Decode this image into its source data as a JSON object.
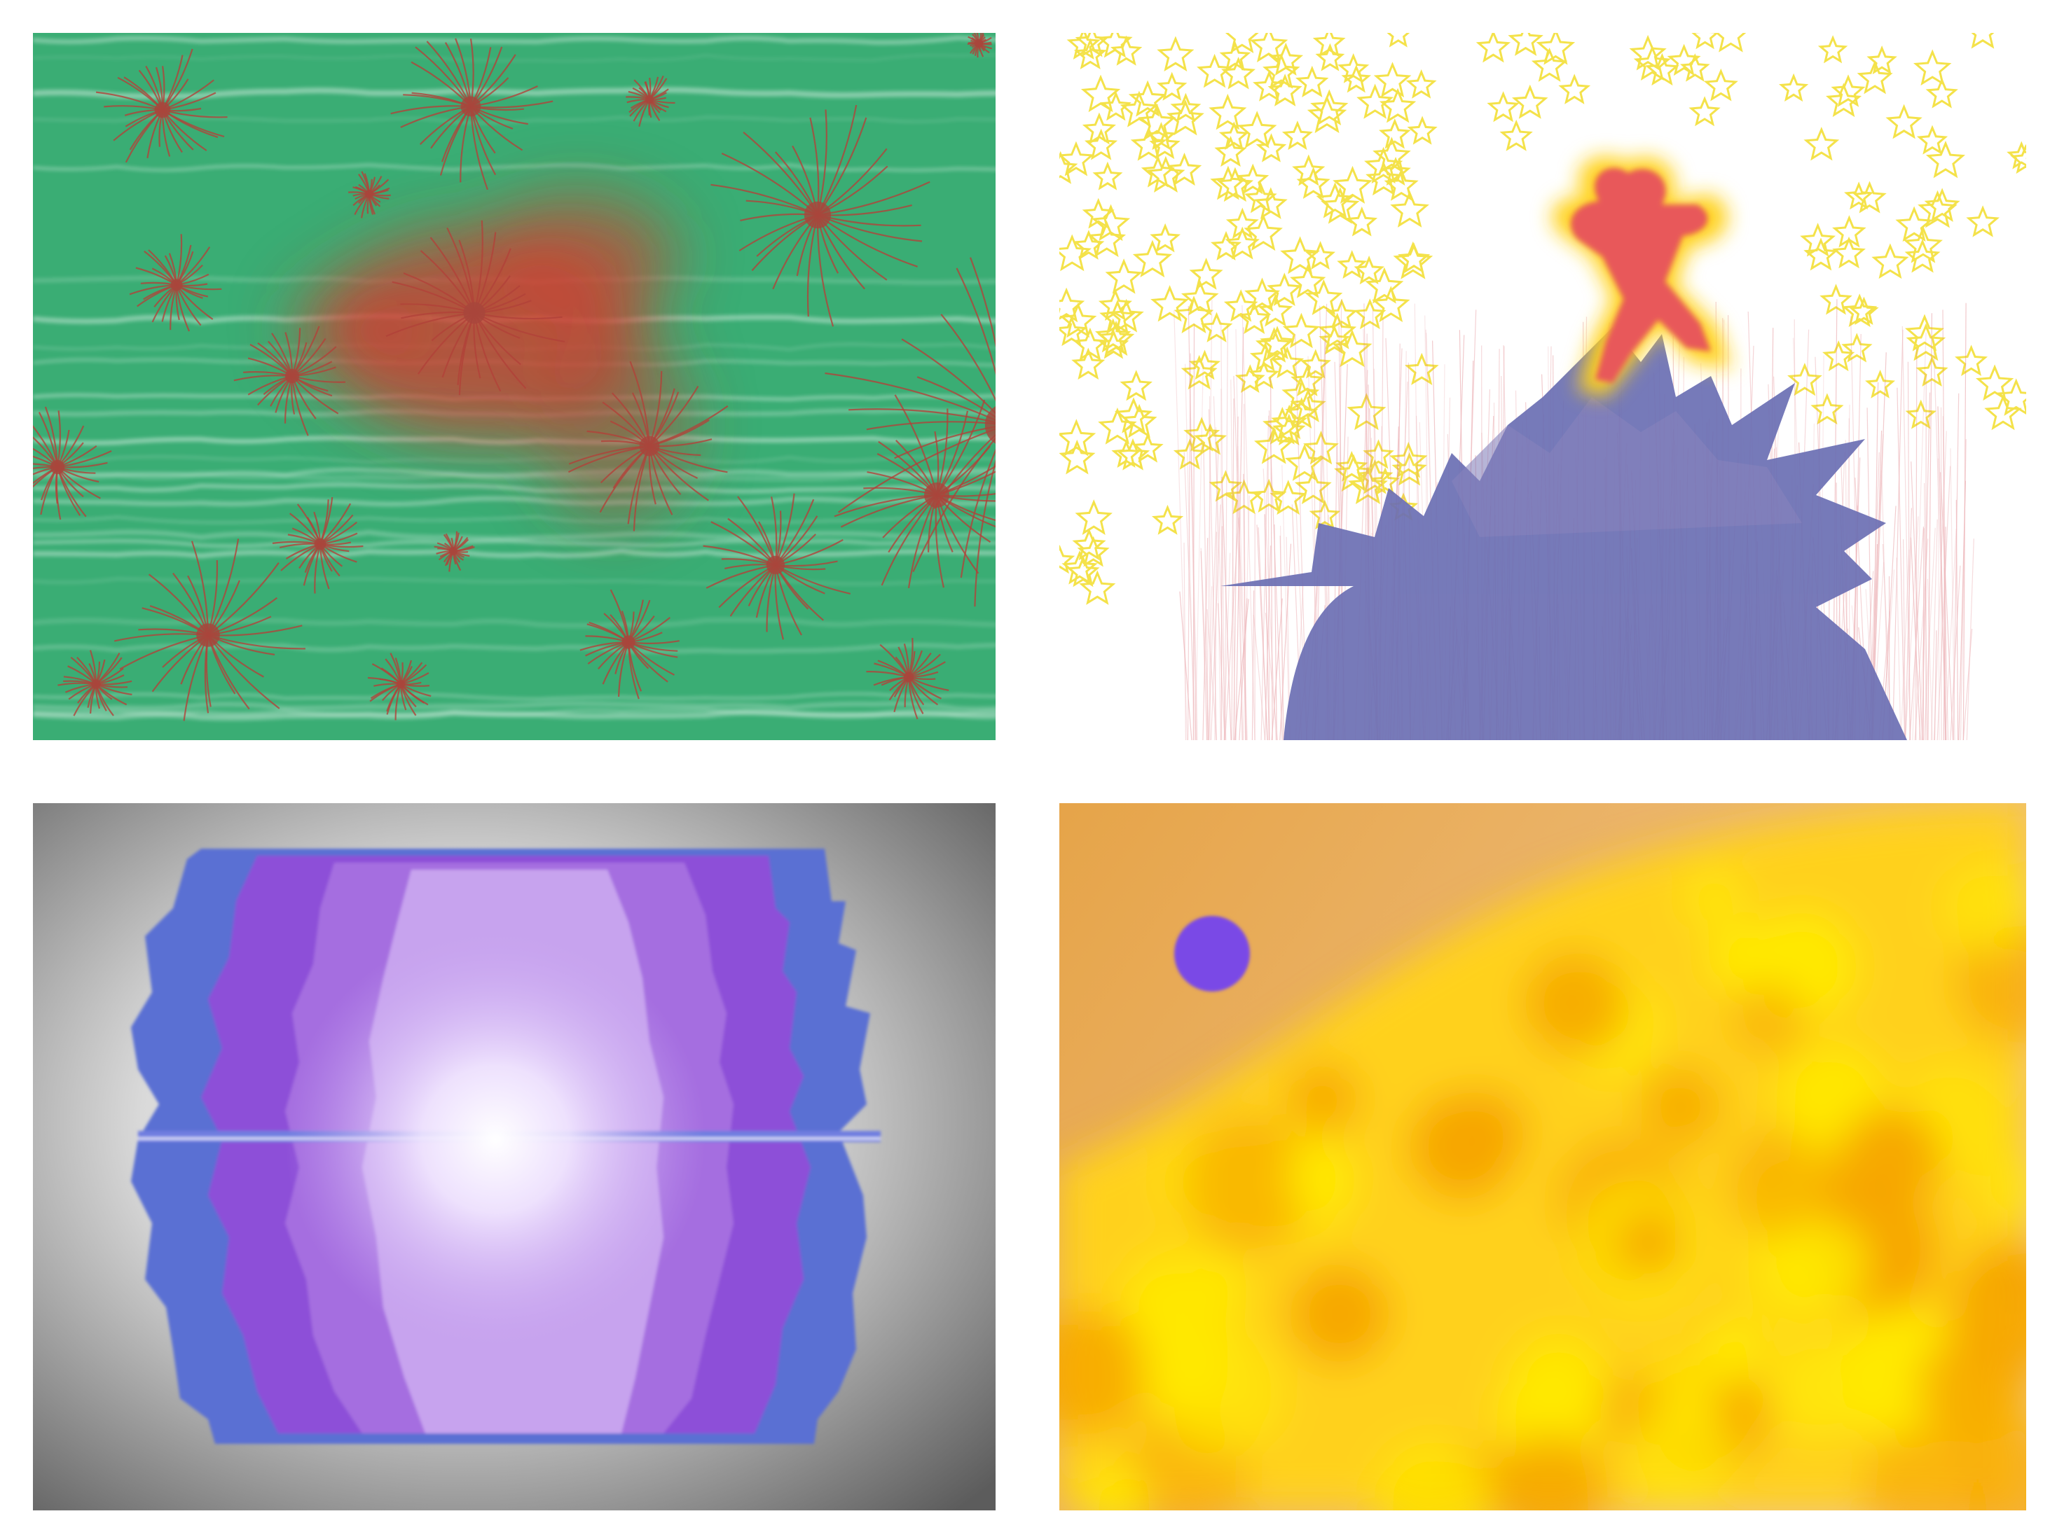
{
  "panels": [
    {
      "id": "green-red-bursts",
      "palette": {
        "background": "#3aad74",
        "streak": "#ffffff",
        "burst": "#b2423a",
        "smear": "#d53a2c"
      }
    },
    {
      "id": "figure-on-hill",
      "palette": {
        "background": "#ffffff",
        "stars": "#f4e24a",
        "hill": "#6b6fb3",
        "grass": "#e07f86",
        "figure": "#e8595a",
        "glow": "#ffd21a"
      }
    },
    {
      "id": "purple-burst",
      "palette": {
        "vignette_light": "#ffffff",
        "vignette_dark": "#5c5c5c",
        "outer": "#5a6fd3",
        "mid": "#8d4fd8",
        "inner": "#b58ae6",
        "core": "#ffffff"
      }
    },
    {
      "id": "yellow-orange-blobs",
      "palette": {
        "sky": "#e7ab4a",
        "blob_yellow": "#ffea00",
        "blob_orange": "#f6a400",
        "dot": "#7a49e6"
      }
    }
  ]
}
